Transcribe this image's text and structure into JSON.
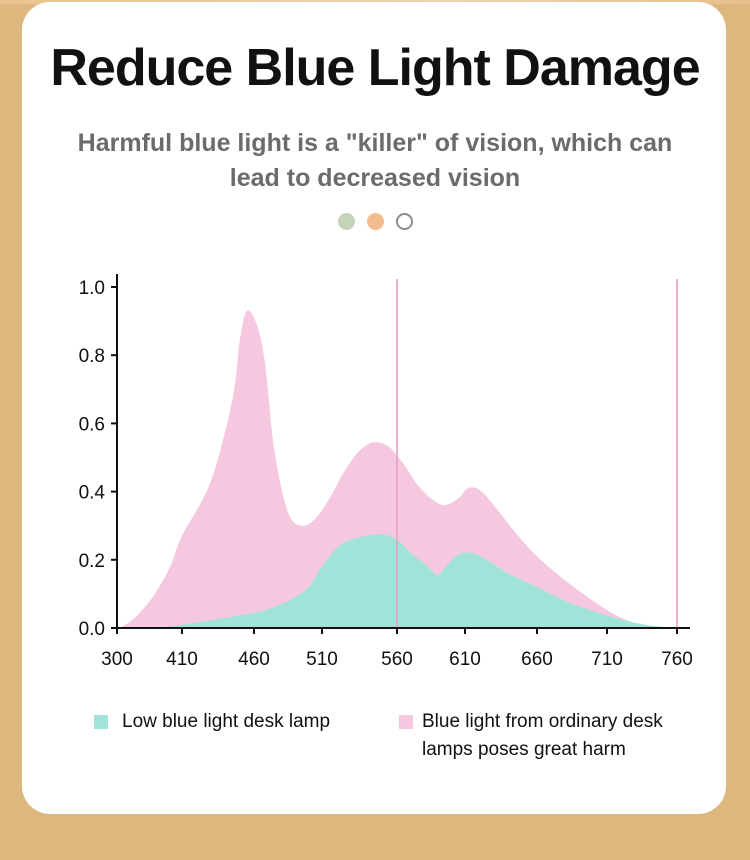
{
  "header": {
    "title": "Reduce Blue Light Damage",
    "subtitle": "Harmful blue light is a \"killer\" of vision, which can lead to decreased vision"
  },
  "pager": {
    "dot_colors": [
      "#c7d3b9",
      "#f2bc8e",
      "#ffffff"
    ],
    "active_index": 2
  },
  "chart_data": {
    "type": "area",
    "title": "",
    "xlabel": "",
    "ylabel": "",
    "x_ticks": [
      300,
      410,
      460,
      510,
      560,
      610,
      660,
      710,
      760
    ],
    "y_ticks": [
      "0.0",
      "0.2",
      "0.4",
      "0.6",
      "0.8",
      "1.0"
    ],
    "ylim": [
      0,
      1.0
    ],
    "grid": false,
    "legend_position": "bottom",
    "reference_lines_x": [
      560,
      760
    ],
    "series": [
      {
        "name": "Blue light from ordinary desk lamps poses great harm",
        "color": "#f5c8e0",
        "x": [
          305,
          330,
          360,
          390,
          410,
          430,
          445,
          450,
          455,
          462,
          468,
          475,
          485,
          495,
          505,
          515,
          525,
          535,
          545,
          555,
          565,
          575,
          585,
          595,
          605,
          612,
          620,
          630,
          645,
          660,
          680,
          700,
          720,
          740,
          760
        ],
        "y": [
          0.0,
          0.03,
          0.09,
          0.18,
          0.27,
          0.43,
          0.67,
          0.84,
          0.93,
          0.89,
          0.78,
          0.52,
          0.34,
          0.3,
          0.32,
          0.38,
          0.46,
          0.52,
          0.545,
          0.53,
          0.48,
          0.42,
          0.38,
          0.36,
          0.38,
          0.41,
          0.405,
          0.36,
          0.28,
          0.21,
          0.14,
          0.08,
          0.03,
          0.005,
          0.0
        ]
      },
      {
        "name": "Low blue light desk lamp",
        "color": "#a2e3d9",
        "x": [
          305,
          360,
          410,
          460,
          480,
          490,
          500,
          510,
          520,
          530,
          540,
          550,
          560,
          570,
          580,
          585,
          590,
          595,
          605,
          615,
          625,
          640,
          660,
          680,
          700,
          720,
          740,
          760
        ],
        "y": [
          0.0,
          0.0,
          0.01,
          0.045,
          0.07,
          0.09,
          0.12,
          0.18,
          0.235,
          0.26,
          0.27,
          0.275,
          0.26,
          0.22,
          0.19,
          0.17,
          0.155,
          0.175,
          0.215,
          0.22,
          0.2,
          0.16,
          0.12,
          0.08,
          0.05,
          0.025,
          0.008,
          0.0
        ]
      }
    ]
  },
  "legend": {
    "items": [
      {
        "label": "Low blue light desk lamp",
        "color": "#a2e3d9"
      },
      {
        "label_line1": "Blue light from ordinary desk",
        "label_line2": "lamps poses great harm",
        "color": "#f5c8e0"
      }
    ]
  }
}
